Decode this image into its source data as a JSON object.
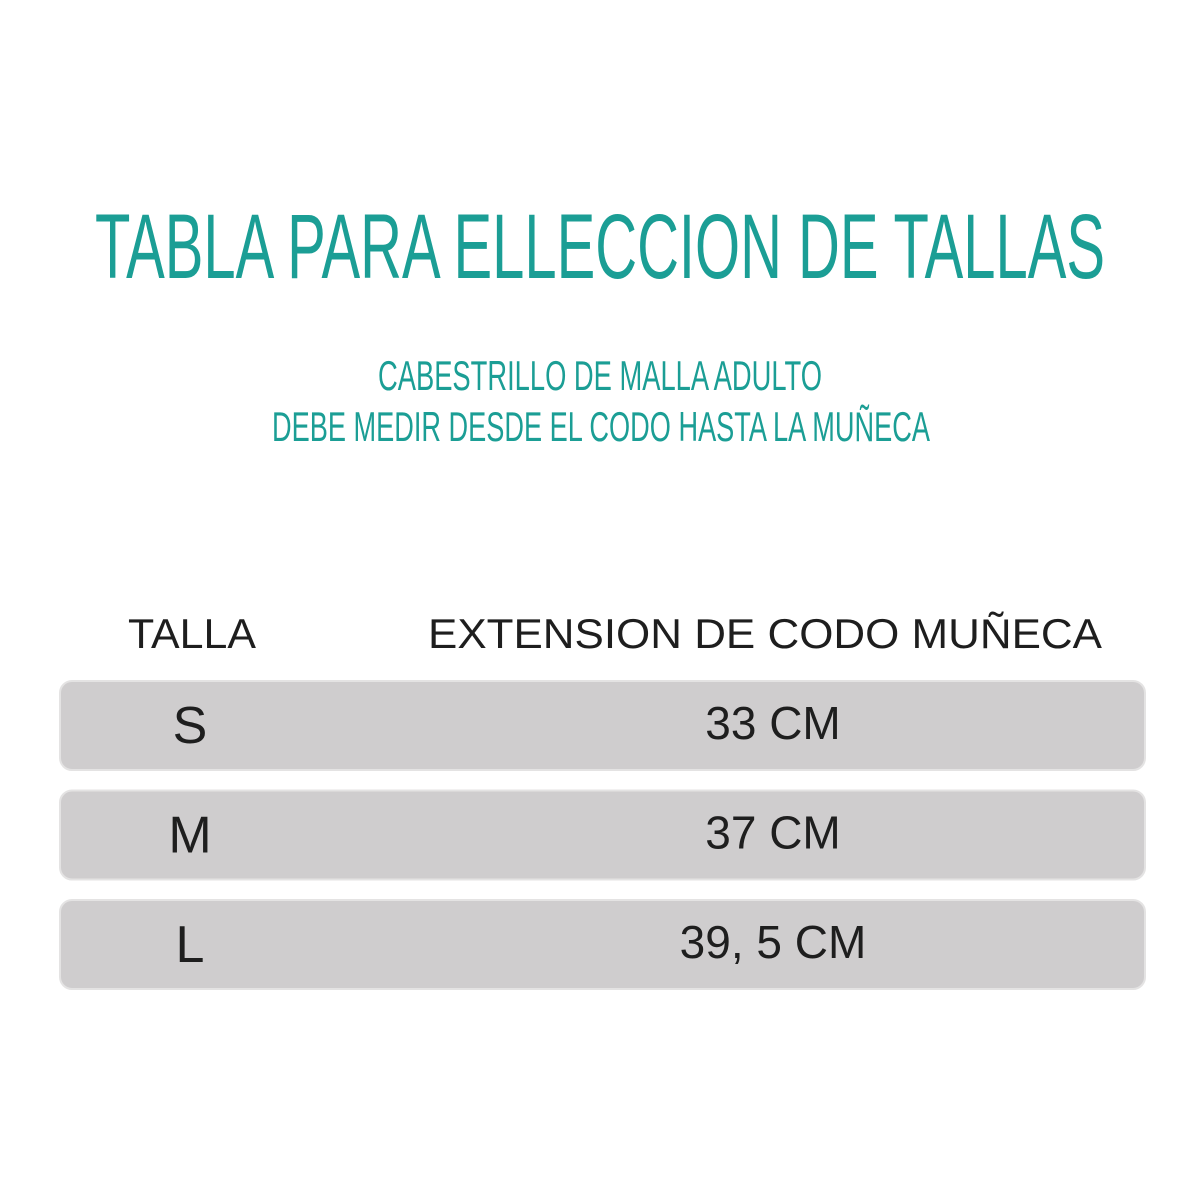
{
  "header": {
    "title": "TABLA PARA ELLECCION DE TALLAS",
    "subtitle": [
      "CABESTRILLO DE MALLA ADULTO",
      "DEBE MEDIR DESDE EL CODO HASTA LA MUÑECA"
    ]
  },
  "table": {
    "columns": [
      "TALLA",
      "EXTENSION DE CODO MUÑECA"
    ],
    "rows": [
      [
        "S",
        "33 CM"
      ],
      [
        "M",
        "37 CM"
      ],
      [
        "L",
        "39, 5 CM"
      ]
    ]
  }
}
